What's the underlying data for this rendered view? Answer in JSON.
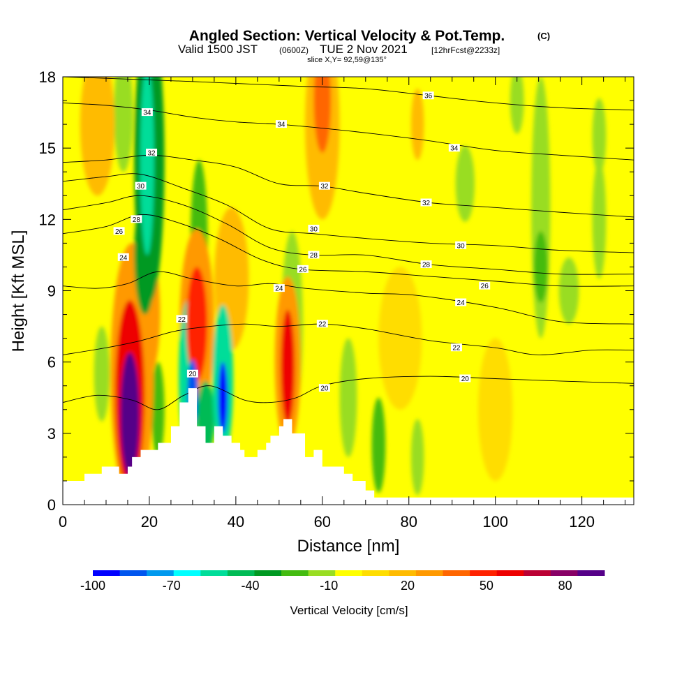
{
  "chart_data": {
    "type": "heatmap",
    "title": "Angled Section: Vertical Velocity & Pot.Temp.",
    "title_suffix": "(C)",
    "subtitle_main": "Valid 1500 JST",
    "subtitle_zulu": "(0600Z)",
    "subtitle_date": "TUE 2 Nov 2021",
    "subtitle_fcst": "[12hrFcst@2233z]",
    "slice_label": "slice X,Y= 92,59@135°",
    "xlabel": "Distance [nm]",
    "ylabel": "Height [Kft MSL]",
    "xlim": [
      0,
      132
    ],
    "ylim": [
      0,
      18
    ],
    "x_ticks": [
      "0",
      "20",
      "40",
      "60",
      "80",
      "100",
      "120"
    ],
    "y_ticks": [
      "0",
      "3",
      "6",
      "9",
      "12",
      "15",
      "18"
    ],
    "colorbar": {
      "label": "Vertical Velocity [cm/s]",
      "range": [
        -100,
        95
      ],
      "tick_labels": [
        "-100",
        "-70",
        "-40",
        "-10",
        "20",
        "50",
        "80"
      ],
      "colors": [
        "#0000ff",
        "#0055ee",
        "#0099ee",
        "#00ffff",
        "#00dd99",
        "#00bb55",
        "#009922",
        "#44bb11",
        "#99dd22",
        "#ffff00",
        "#ffdd00",
        "#ffbb00",
        "#ff9900",
        "#ff6600",
        "#ff2200",
        "#ee0000",
        "#bb0033",
        "#880066",
        "#550088"
      ]
    },
    "terrain": [
      [
        0,
        1
      ],
      [
        5,
        1
      ],
      [
        5,
        1.3
      ],
      [
        9,
        1.3
      ],
      [
        9,
        1.6
      ],
      [
        13,
        1.6
      ],
      [
        13,
        1.3
      ],
      [
        15,
        1.3
      ],
      [
        15,
        1.6
      ],
      [
        16,
        1.6
      ],
      [
        16,
        2
      ],
      [
        18,
        2
      ],
      [
        18,
        2.3
      ],
      [
        22,
        2.3
      ],
      [
        22,
        2.6
      ],
      [
        25,
        2.6
      ],
      [
        25,
        3.3
      ],
      [
        27,
        3.3
      ],
      [
        27,
        4.3
      ],
      [
        29,
        4.3
      ],
      [
        29,
        4.9
      ],
      [
        31,
        4.9
      ],
      [
        31,
        3.3
      ],
      [
        33,
        3.3
      ],
      [
        33,
        2.6
      ],
      [
        35,
        2.6
      ],
      [
        35,
        3.3
      ],
      [
        37,
        3.3
      ],
      [
        37,
        2.9
      ],
      [
        39,
        2.9
      ],
      [
        39,
        2.6
      ],
      [
        41,
        2.6
      ],
      [
        41,
        2.3
      ],
      [
        42,
        2.3
      ],
      [
        42,
        2
      ],
      [
        45,
        2
      ],
      [
        45,
        2.3
      ],
      [
        47,
        2.3
      ],
      [
        47,
        2.6
      ],
      [
        48,
        2.6
      ],
      [
        48,
        2.9
      ],
      [
        50,
        2.9
      ],
      [
        50,
        3.3
      ],
      [
        51,
        3.3
      ],
      [
        51,
        3.6
      ],
      [
        53,
        3.6
      ],
      [
        53,
        3
      ],
      [
        56,
        3
      ],
      [
        56,
        2
      ],
      [
        58,
        2
      ],
      [
        58,
        2.3
      ],
      [
        60,
        2.3
      ],
      [
        60,
        1.6
      ],
      [
        62,
        1.6
      ],
      [
        62,
        1.6
      ],
      [
        65,
        1.6
      ],
      [
        65,
        1.3
      ],
      [
        67,
        1.3
      ],
      [
        67,
        1
      ],
      [
        70,
        1
      ],
      [
        70,
        0.6
      ],
      [
        72,
        0.6
      ],
      [
        72,
        0.3
      ],
      [
        132,
        0.3
      ]
    ],
    "isentropes": [
      {
        "label": "20",
        "pts": [
          [
            0,
            4.3
          ],
          [
            8,
            4.6
          ],
          [
            16,
            4.4
          ],
          [
            22,
            4.0
          ],
          [
            28,
            4.6
          ],
          [
            34,
            5.0
          ],
          [
            42,
            4.4
          ],
          [
            48,
            4.3
          ],
          [
            54,
            4.5
          ],
          [
            60,
            5.0
          ],
          [
            70,
            5.3
          ],
          [
            85,
            5.4
          ],
          [
            100,
            5.3
          ],
          [
            115,
            5.2
          ],
          [
            132,
            5.1
          ]
        ],
        "label_pos": [
          [
            60.5,
            4.9
          ],
          [
            30,
            5.5
          ],
          [
            93,
            5.3
          ]
        ]
      },
      {
        "label": "22",
        "pts": [
          [
            0,
            6.3
          ],
          [
            10,
            6.6
          ],
          [
            18,
            6.9
          ],
          [
            26,
            7.3
          ],
          [
            34,
            7.5
          ],
          [
            42,
            7.6
          ],
          [
            50,
            7.5
          ],
          [
            60,
            7.6
          ],
          [
            70,
            7.4
          ],
          [
            85,
            6.9
          ],
          [
            100,
            6.6
          ],
          [
            110,
            6.3
          ],
          [
            122,
            6.5
          ],
          [
            132,
            6.5
          ]
        ],
        "label_pos": [
          [
            27.5,
            7.8
          ],
          [
            60,
            7.6
          ],
          [
            91,
            6.6
          ]
        ]
      },
      {
        "label": "24",
        "pts": [
          [
            0,
            9.2
          ],
          [
            8,
            9.1
          ],
          [
            15,
            9.3
          ],
          [
            22,
            9.8
          ],
          [
            30,
            9.5
          ],
          [
            40,
            9.2
          ],
          [
            48,
            9.3
          ],
          [
            56,
            9.1
          ],
          [
            70,
            8.9
          ],
          [
            82,
            8.8
          ],
          [
            100,
            8.3
          ],
          [
            115,
            7.7
          ],
          [
            132,
            7.6
          ]
        ],
        "label_pos": [
          [
            14,
            10.4
          ],
          [
            50,
            9.1
          ],
          [
            92,
            8.5
          ]
        ]
      },
      {
        "label": "26",
        "pts": [
          [
            0,
            11.4
          ],
          [
            10,
            11.7
          ],
          [
            18,
            12.2
          ],
          [
            26,
            11.9
          ],
          [
            36,
            11.2
          ],
          [
            46,
            10.3
          ],
          [
            55,
            9.9
          ],
          [
            70,
            9.8
          ],
          [
            85,
            9.6
          ],
          [
            100,
            9.4
          ],
          [
            115,
            9.2
          ],
          [
            132,
            9.2
          ]
        ],
        "label_pos": [
          [
            13,
            11.5
          ],
          [
            55.5,
            9.9
          ],
          [
            97.5,
            9.2
          ]
        ]
      },
      {
        "label": "28",
        "pts": [
          [
            0,
            12.4
          ],
          [
            10,
            12.7
          ],
          [
            18,
            13.0
          ],
          [
            28,
            12.6
          ],
          [
            38,
            11.8
          ],
          [
            48,
            10.8
          ],
          [
            58,
            10.5
          ],
          [
            70,
            10.5
          ],
          [
            85,
            10.1
          ],
          [
            100,
            9.9
          ],
          [
            115,
            9.7
          ],
          [
            132,
            9.7
          ]
        ],
        "label_pos": [
          [
            17,
            12.0
          ],
          [
            58,
            10.5
          ],
          [
            84,
            10.1
          ]
        ]
      },
      {
        "label": "30",
        "pts": [
          [
            0,
            13.6
          ],
          [
            10,
            13.8
          ],
          [
            18,
            13.9
          ],
          [
            28,
            13.3
          ],
          [
            38,
            12.6
          ],
          [
            48,
            11.6
          ],
          [
            58,
            11.4
          ],
          [
            70,
            11.2
          ],
          [
            85,
            11.0
          ],
          [
            100,
            10.9
          ],
          [
            115,
            10.7
          ],
          [
            132,
            10.6
          ]
        ],
        "label_pos": [
          [
            18,
            13.4
          ],
          [
            58,
            11.6
          ],
          [
            92,
            10.9
          ]
        ]
      },
      {
        "label": "32",
        "pts": [
          [
            0,
            14.4
          ],
          [
            10,
            14.5
          ],
          [
            20,
            14.7
          ],
          [
            30,
            14.5
          ],
          [
            40,
            14.2
          ],
          [
            50,
            13.5
          ],
          [
            60,
            13.4
          ],
          [
            70,
            13.1
          ],
          [
            85,
            12.7
          ],
          [
            100,
            12.5
          ],
          [
            115,
            12.3
          ],
          [
            132,
            12.1
          ]
        ],
        "label_pos": [
          [
            20.5,
            14.8
          ],
          [
            60.5,
            13.4
          ],
          [
            84,
            12.7
          ]
        ]
      },
      {
        "label": "34",
        "pts": [
          [
            0,
            16.9
          ],
          [
            10,
            16.8
          ],
          [
            20,
            16.6
          ],
          [
            30,
            16.3
          ],
          [
            40,
            16.1
          ],
          [
            50,
            16.0
          ],
          [
            62,
            15.8
          ],
          [
            72,
            15.6
          ],
          [
            85,
            15.3
          ],
          [
            100,
            14.9
          ],
          [
            115,
            14.7
          ],
          [
            132,
            14.5
          ]
        ],
        "label_pos": [
          [
            19.5,
            16.5
          ],
          [
            50.5,
            16.0
          ],
          [
            90.5,
            15.0
          ]
        ]
      },
      {
        "label": "36",
        "pts": [
          [
            0,
            18.0
          ],
          [
            30,
            17.8
          ],
          [
            55,
            17.6
          ],
          [
            70,
            17.5
          ],
          [
            85,
            17.2
          ],
          [
            100,
            16.9
          ],
          [
            115,
            16.7
          ],
          [
            132,
            16.6
          ]
        ],
        "label_pos": [
          [
            84.5,
            17.2
          ]
        ]
      }
    ],
    "velocity_cells": [
      {
        "x": 15.5,
        "y": 3.8,
        "rx": 2.2,
        "ry": 2.6,
        "v": 92
      },
      {
        "x": 15.5,
        "y": 4.6,
        "rx": 3.4,
        "ry": 4.0,
        "v": 55
      },
      {
        "x": 16,
        "y": 5.5,
        "rx": 5,
        "ry": 5.5,
        "v": 28
      },
      {
        "x": 31,
        "y": 7.6,
        "rx": 2.4,
        "ry": 2.4,
        "v": 52
      },
      {
        "x": 31,
        "y": 7.6,
        "rx": 4,
        "ry": 4,
        "v": 28
      },
      {
        "x": 52,
        "y": 5.8,
        "rx": 1.6,
        "ry": 2.4,
        "v": 58
      },
      {
        "x": 52,
        "y": 6.0,
        "rx": 3,
        "ry": 3.6,
        "v": 28
      },
      {
        "x": 60,
        "y": 17.0,
        "rx": 2,
        "ry": 2.2,
        "v": 42
      },
      {
        "x": 60,
        "y": 16,
        "rx": 4,
        "ry": 4,
        "v": 22
      },
      {
        "x": 39,
        "y": 9.5,
        "rx": 4,
        "ry": 3,
        "v": 18
      },
      {
        "x": 20,
        "y": 8.0,
        "rx": 2.5,
        "ry": 2.5,
        "v": 25
      },
      {
        "x": 8,
        "y": 16,
        "rx": 4,
        "ry": 3,
        "v": 18
      },
      {
        "x": 20,
        "y": 14.5,
        "rx": 3.5,
        "ry": 6,
        "v": -30
      },
      {
        "x": 19.5,
        "y": 14.5,
        "rx": 1.6,
        "ry": 4,
        "v": -55
      },
      {
        "x": 19,
        "y": 10.5,
        "rx": 2.5,
        "ry": 2.5,
        "v": -35
      },
      {
        "x": 29,
        "y": 5.4,
        "rx": 2.2,
        "ry": 3.2,
        "v": -50
      },
      {
        "x": 30,
        "y": 4.6,
        "rx": 1.2,
        "ry": 1.5,
        "v": -80
      },
      {
        "x": 37,
        "y": 5.2,
        "rx": 2.4,
        "ry": 3.2,
        "v": -55
      },
      {
        "x": 37,
        "y": 4.5,
        "rx": 1.1,
        "ry": 1.5,
        "v": -95
      },
      {
        "x": 33,
        "y": 3.6,
        "rx": 2,
        "ry": 1.6,
        "v": -40
      },
      {
        "x": 31.5,
        "y": 11.0,
        "rx": 2,
        "ry": 3.5,
        "v": -22
      },
      {
        "x": 53,
        "y": 7.5,
        "rx": 2.5,
        "ry": 4,
        "v": -15
      },
      {
        "x": 22,
        "y": 4,
        "rx": 1.5,
        "ry": 2,
        "v": -20
      },
      {
        "x": 9,
        "y": 5.5,
        "rx": 1.8,
        "ry": 2,
        "v": -15
      },
      {
        "x": 14,
        "y": 16.5,
        "rx": 2.2,
        "ry": 2.5,
        "v": -15
      },
      {
        "x": 66,
        "y": 4.5,
        "rx": 2,
        "ry": 2.5,
        "v": -15
      },
      {
        "x": 73,
        "y": 2.5,
        "rx": 1.6,
        "ry": 2,
        "v": -20
      },
      {
        "x": 82,
        "y": 2.0,
        "rx": 1.5,
        "ry": 1.6,
        "v": -15
      },
      {
        "x": 93,
        "y": 13.5,
        "rx": 2.2,
        "ry": 1.6,
        "v": -15
      },
      {
        "x": 110.5,
        "y": 12.5,
        "rx": 2.2,
        "ry": 5.5,
        "v": -15
      },
      {
        "x": 110.5,
        "y": 10,
        "rx": 1.6,
        "ry": 1.5,
        "v": -20
      },
      {
        "x": 117,
        "y": 9.0,
        "rx": 2.3,
        "ry": 1.4,
        "v": -15
      },
      {
        "x": 124,
        "y": 12.0,
        "rx": 1.6,
        "ry": 2.5,
        "v": -15
      },
      {
        "x": 124,
        "y": 15.5,
        "rx": 1.6,
        "ry": 1.6,
        "v": -15
      },
      {
        "x": 105,
        "y": 17.0,
        "rx": 1.6,
        "ry": 1.4,
        "v": -15
      },
      {
        "x": 82,
        "y": 16.0,
        "rx": 1.5,
        "ry": 1.5,
        "v": 15
      },
      {
        "x": 100,
        "y": 4,
        "rx": 4,
        "ry": 3,
        "v": 12
      },
      {
        "x": 78,
        "y": 7,
        "rx": 5,
        "ry": 3,
        "v": 12
      }
    ]
  }
}
